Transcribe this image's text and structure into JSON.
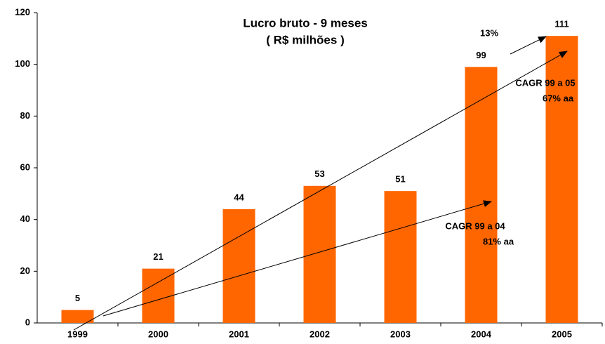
{
  "chart_data": {
    "type": "bar",
    "title": "Lucro bruto - 9 meses",
    "subtitle": "( R$ milhões )",
    "categories": [
      "1999",
      "2000",
      "2001",
      "2002",
      "2003",
      "2004",
      "2005"
    ],
    "values": [
      5,
      21,
      44,
      53,
      51,
      99,
      111
    ],
    "color": "#ff6600",
    "ylim": [
      0,
      120
    ],
    "yticks": [
      0,
      20,
      40,
      60,
      80,
      100,
      120
    ],
    "grid": false,
    "annotations": [
      "13%",
      "CAGR 99 a 05",
      "67% aa",
      "CAGR 99 a 04",
      "81% aa"
    ]
  }
}
